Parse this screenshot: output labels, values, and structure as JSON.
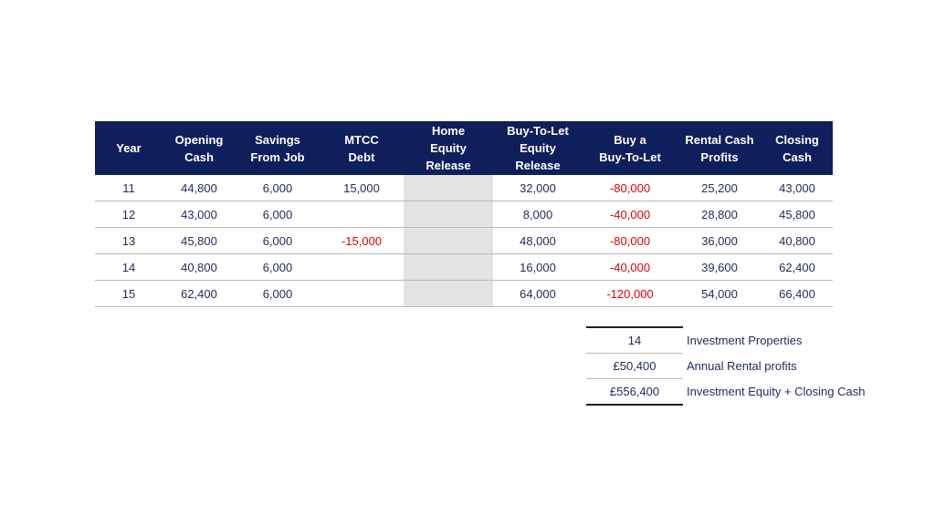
{
  "table": {
    "headers": {
      "year": "Year",
      "opening_cash": [
        "Opening",
        "Cash"
      ],
      "savings": [
        "Savings",
        "From Job"
      ],
      "mtcc": [
        "MTCC",
        "Debt"
      ],
      "home_equity": [
        "Home",
        "Equity",
        "Release"
      ],
      "btl_equity": [
        "Buy-To-Let",
        "Equity",
        "Release"
      ],
      "buy_btl": [
        "Buy a",
        "Buy-To-Let"
      ],
      "rental": [
        "Rental Cash",
        "Profits"
      ],
      "closing": [
        "Closing",
        "Cash"
      ]
    },
    "rows": [
      {
        "year": "11",
        "opening": "44,800",
        "savings": "6,000",
        "mtcc": "15,000",
        "home": "",
        "btl": "32,000",
        "buy": "-80,000",
        "rental": "25,200",
        "closing": "43,000"
      },
      {
        "year": "12",
        "opening": "43,000",
        "savings": "6,000",
        "mtcc": "",
        "home": "",
        "btl": "8,000",
        "buy": "-40,000",
        "rental": "28,800",
        "closing": "45,800"
      },
      {
        "year": "13",
        "opening": "45,800",
        "savings": "6,000",
        "mtcc": "-15,000",
        "home": "",
        "btl": "48,000",
        "buy": "-80,000",
        "rental": "36,000",
        "closing": "40,800"
      },
      {
        "year": "14",
        "opening": "40,800",
        "savings": "6,000",
        "mtcc": "",
        "home": "",
        "btl": "16,000",
        "buy": "-40,000",
        "rental": "39,600",
        "closing": "62,400"
      },
      {
        "year": "15",
        "opening": "62,400",
        "savings": "6,000",
        "mtcc": "",
        "home": "",
        "btl": "64,000",
        "buy": "-120,000",
        "rental": "54,000",
        "closing": "66,400"
      }
    ]
  },
  "summary": [
    {
      "value": "14",
      "label": "Investment Properties"
    },
    {
      "value": "£50,400",
      "label": "Annual Rental profits"
    },
    {
      "value": "£556,400",
      "label": "Investment Equity + Closing Cash"
    }
  ],
  "colors": {
    "header_bg": "#0f1f5c",
    "text": "#1f2a5c",
    "negative": "#e00000",
    "shaded_column": "#e3e3e3"
  }
}
